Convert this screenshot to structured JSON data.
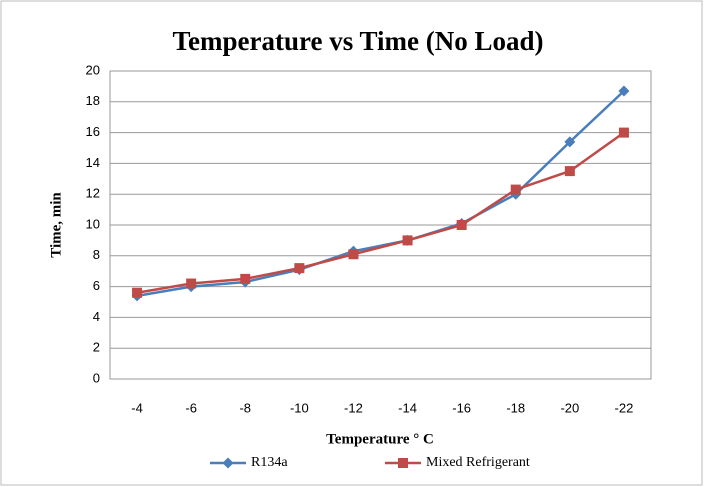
{
  "chart_data": {
    "type": "line",
    "title": "Temperature vs Time (No Load)",
    "x_label": "Temperature ° C",
    "y_label": "Time, min",
    "categories": [
      "-4",
      "-6",
      "-8",
      "-10",
      "-12",
      "-14",
      "-16",
      "-18",
      "-20",
      "-22"
    ],
    "series": [
      {
        "name": "R134a",
        "color": "#4a7ebb",
        "marker": "diamond",
        "values": [
          5.4,
          6.0,
          6.3,
          7.1,
          8.3,
          9.0,
          10.1,
          12.0,
          15.4,
          18.7
        ]
      },
      {
        "name": "Mixed Refrigerant",
        "color": "#be4b48",
        "marker": "square",
        "values": [
          5.6,
          6.2,
          6.5,
          7.2,
          8.1,
          9.0,
          10.0,
          12.3,
          13.5,
          16.0
        ]
      }
    ],
    "ylim": [
      0,
      20
    ],
    "yticks": [
      0,
      2,
      4,
      6,
      8,
      10,
      12,
      14,
      16,
      18,
      20
    ],
    "grid": true,
    "legend": "bottom"
  }
}
